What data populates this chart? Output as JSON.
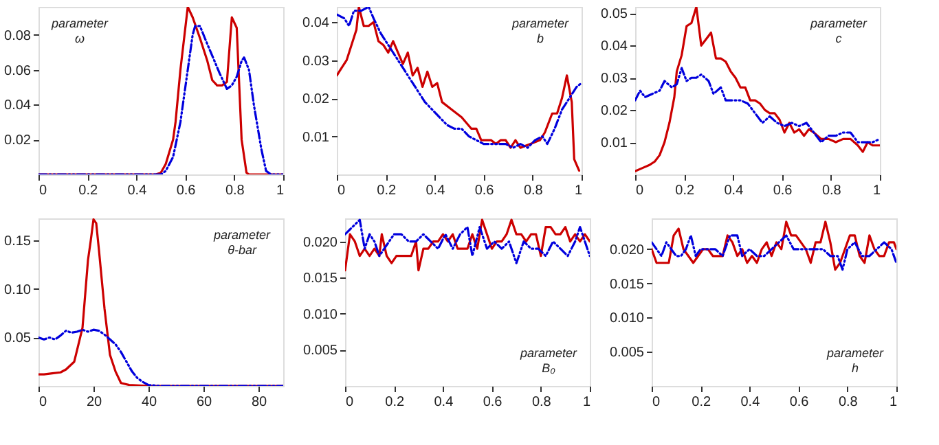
{
  "chart_data": [
    {
      "type": "line",
      "annotations": [
        "parameter\nω"
      ],
      "xlim": [
        0,
        1
      ],
      "xticks": [
        0,
        0.2,
        0.4,
        0.6,
        0.8,
        1
      ],
      "ylim": [
        0,
        0.096
      ],
      "yticks": [
        0.02,
        0.04,
        0.06,
        0.08
      ],
      "grid": false,
      "legend": false,
      "series": [
        {
          "color": "#cc0000",
          "line_style": "solid",
          "x": [
            0,
            0.48,
            0.5,
            0.52,
            0.55,
            0.56,
            0.58,
            0.61,
            0.63,
            0.66,
            0.69,
            0.71,
            0.73,
            0.75,
            0.77,
            0.79,
            0.81,
            0.83,
            0.85,
            0.86,
            1
          ],
          "values": [
            0,
            0,
            0.001,
            0.006,
            0.02,
            0.03,
            0.06,
            0.096,
            0.09,
            0.078,
            0.065,
            0.054,
            0.051,
            0.051,
            0.053,
            0.09,
            0.084,
            0.02,
            0.001,
            0,
            0
          ]
        },
        {
          "color": "#0000dd",
          "line_style": "dashed",
          "x": [
            0,
            0.5,
            0.52,
            0.55,
            0.58,
            0.61,
            0.63,
            0.64,
            0.66,
            0.68,
            0.71,
            0.74,
            0.77,
            0.79,
            0.81,
            0.83,
            0.84,
            0.86,
            0.88,
            0.91,
            0.93,
            0.95,
            1
          ],
          "values": [
            0,
            0,
            0.002,
            0.01,
            0.03,
            0.06,
            0.08,
            0.085,
            0.085,
            0.078,
            0.068,
            0.058,
            0.049,
            0.051,
            0.056,
            0.065,
            0.067,
            0.06,
            0.04,
            0.015,
            0.002,
            0,
            0
          ]
        }
      ]
    },
    {
      "type": "line",
      "annotations": [
        "parameter\nb"
      ],
      "xlim": [
        0,
        1
      ],
      "xticks": [
        0,
        0.2,
        0.4,
        0.6,
        0.8,
        1
      ],
      "ylim": [
        0,
        0.044
      ],
      "yticks": [
        0.01,
        0.02,
        0.03,
        0.04
      ],
      "grid": false,
      "legend": false,
      "series": [
        {
          "color": "#cc0000",
          "line_style": "solid",
          "x": [
            0,
            0.02,
            0.04,
            0.06,
            0.08,
            0.09,
            0.11,
            0.13,
            0.15,
            0.17,
            0.19,
            0.21,
            0.23,
            0.25,
            0.27,
            0.29,
            0.31,
            0.33,
            0.35,
            0.37,
            0.39,
            0.41,
            0.43,
            0.47,
            0.51,
            0.55,
            0.57,
            0.59,
            0.63,
            0.65,
            0.67,
            0.69,
            0.71,
            0.73,
            0.75,
            0.79,
            0.83,
            0.85,
            0.88,
            0.9,
            0.92,
            0.94,
            0.96,
            0.97,
            0.99
          ],
          "values": [
            0.026,
            0.028,
            0.03,
            0.034,
            0.038,
            0.044,
            0.039,
            0.039,
            0.04,
            0.035,
            0.034,
            0.032,
            0.035,
            0.032,
            0.029,
            0.032,
            0.026,
            0.028,
            0.023,
            0.027,
            0.023,
            0.024,
            0.019,
            0.017,
            0.015,
            0.012,
            0.012,
            0.009,
            0.009,
            0.008,
            0.009,
            0.009,
            0.007,
            0.009,
            0.007,
            0.008,
            0.009,
            0.011,
            0.016,
            0.016,
            0.02,
            0.026,
            0.019,
            0.004,
            0.001
          ]
        },
        {
          "color": "#0000dd",
          "line_style": "dashed",
          "x": [
            0,
            0.03,
            0.05,
            0.07,
            0.1,
            0.13,
            0.15,
            0.18,
            0.21,
            0.24,
            0.27,
            0.3,
            0.33,
            0.36,
            0.39,
            0.42,
            0.45,
            0.48,
            0.51,
            0.54,
            0.57,
            0.6,
            0.63,
            0.66,
            0.69,
            0.72,
            0.75,
            0.78,
            0.81,
            0.84,
            0.86,
            0.89,
            0.92,
            0.95,
            0.98,
            1
          ],
          "values": [
            0.042,
            0.041,
            0.039,
            0.043,
            0.043,
            0.044,
            0.041,
            0.037,
            0.034,
            0.031,
            0.028,
            0.025,
            0.022,
            0.019,
            0.017,
            0.015,
            0.013,
            0.012,
            0.012,
            0.01,
            0.009,
            0.008,
            0.008,
            0.008,
            0.008,
            0.007,
            0.008,
            0.007,
            0.009,
            0.01,
            0.008,
            0.012,
            0.017,
            0.02,
            0.023,
            0.024
          ]
        }
      ]
    },
    {
      "type": "line",
      "annotations": [
        "parameter\nc"
      ],
      "xlim": [
        0,
        1
      ],
      "xticks": [
        0,
        0.2,
        0.4,
        0.6,
        0.8,
        1
      ],
      "ylim": [
        0,
        0.052
      ],
      "yticks": [
        0.01,
        0.02,
        0.03,
        0.04,
        0.05
      ],
      "grid": false,
      "legend": false,
      "series": [
        {
          "color": "#cc0000",
          "line_style": "solid",
          "x": [
            0,
            0.03,
            0.06,
            0.08,
            0.1,
            0.12,
            0.14,
            0.16,
            0.17,
            0.19,
            0.21,
            0.23,
            0.25,
            0.27,
            0.29,
            0.31,
            0.33,
            0.35,
            0.37,
            0.39,
            0.41,
            0.43,
            0.45,
            0.47,
            0.49,
            0.51,
            0.53,
            0.55,
            0.57,
            0.59,
            0.61,
            0.63,
            0.65,
            0.67,
            0.69,
            0.71,
            0.73,
            0.76,
            0.79,
            0.82,
            0.85,
            0.88,
            0.91,
            0.93,
            0.95,
            0.97,
            1
          ],
          "values": [
            0.001,
            0.002,
            0.003,
            0.004,
            0.006,
            0.01,
            0.016,
            0.024,
            0.032,
            0.037,
            0.046,
            0.047,
            0.052,
            0.04,
            0.042,
            0.044,
            0.036,
            0.036,
            0.035,
            0.032,
            0.03,
            0.027,
            0.027,
            0.023,
            0.023,
            0.022,
            0.02,
            0.019,
            0.019,
            0.017,
            0.013,
            0.016,
            0.013,
            0.014,
            0.012,
            0.014,
            0.013,
            0.011,
            0.011,
            0.01,
            0.011,
            0.011,
            0.009,
            0.007,
            0.01,
            0.009,
            0.009
          ]
        },
        {
          "color": "#0000dd",
          "line_style": "dashed",
          "x": [
            0,
            0.02,
            0.04,
            0.07,
            0.1,
            0.12,
            0.15,
            0.17,
            0.19,
            0.21,
            0.23,
            0.25,
            0.27,
            0.3,
            0.32,
            0.35,
            0.37,
            0.4,
            0.43,
            0.46,
            0.49,
            0.52,
            0.55,
            0.58,
            0.61,
            0.64,
            0.67,
            0.7,
            0.73,
            0.76,
            0.79,
            0.82,
            0.85,
            0.88,
            0.91,
            0.94,
            0.97,
            1
          ],
          "values": [
            0.023,
            0.026,
            0.024,
            0.025,
            0.026,
            0.029,
            0.027,
            0.028,
            0.033,
            0.029,
            0.03,
            0.03,
            0.031,
            0.029,
            0.025,
            0.027,
            0.023,
            0.023,
            0.023,
            0.022,
            0.019,
            0.016,
            0.018,
            0.016,
            0.015,
            0.016,
            0.015,
            0.016,
            0.013,
            0.01,
            0.012,
            0.012,
            0.013,
            0.013,
            0.01,
            0.01,
            0.01,
            0.011
          ]
        }
      ]
    },
    {
      "type": "line",
      "annotations": [
        "parameter\nθ-bar"
      ],
      "xlim": [
        0,
        89
      ],
      "xticks": [
        0,
        20,
        40,
        60,
        80
      ],
      "ylim": [
        0,
        0.173
      ],
      "yticks": [
        0.05,
        {
          "value": 0.1,
          "label": "0.10"
        },
        0.15
      ],
      "grid": false,
      "legend": false,
      "series": [
        {
          "color": "#cc0000",
          "line_style": "solid",
          "x": [
            0,
            2,
            5,
            8,
            10,
            13,
            16,
            18,
            19,
            20,
            21,
            22,
            24,
            26,
            28,
            30,
            33,
            40,
            89
          ],
          "values": [
            0.012,
            0.012,
            0.013,
            0.014,
            0.017,
            0.025,
            0.06,
            0.13,
            0.15,
            0.172,
            0.168,
            0.14,
            0.08,
            0.032,
            0.015,
            0.003,
            0.001,
            0,
            0
          ]
        },
        {
          "color": "#0000dd",
          "line_style": "dashed",
          "x": [
            0,
            2,
            4,
            6,
            8,
            10,
            12,
            14,
            16,
            18,
            20,
            22,
            24,
            26,
            28,
            30,
            32,
            34,
            36,
            38,
            40,
            44,
            89
          ],
          "values": [
            0.05,
            0.048,
            0.05,
            0.048,
            0.052,
            0.057,
            0.055,
            0.056,
            0.058,
            0.056,
            0.058,
            0.057,
            0.053,
            0.048,
            0.043,
            0.035,
            0.025,
            0.015,
            0.008,
            0.004,
            0.001,
            0,
            0
          ]
        }
      ]
    },
    {
      "type": "line",
      "annotations": [
        "parameter\nB₀"
      ],
      "xlim": [
        0,
        1
      ],
      "xticks": [
        0,
        0.2,
        0.4,
        0.6,
        0.8,
        1
      ],
      "ylim": [
        0,
        0.0232
      ],
      "yticks": [
        {
          "value": 0.005,
          "label": "0.005"
        },
        {
          "value": 0.01,
          "label": "0.010"
        },
        {
          "value": 0.015,
          "label": "0.015"
        },
        {
          "value": 0.02,
          "label": "0.020"
        }
      ],
      "grid": false,
      "legend": false,
      "series": [
        {
          "color": "#cc0000",
          "line_style": "solid",
          "x": [
            0,
            0.02,
            0.04,
            0.06,
            0.08,
            0.1,
            0.12,
            0.14,
            0.15,
            0.17,
            0.19,
            0.21,
            0.23,
            0.25,
            0.27,
            0.29,
            0.3,
            0.32,
            0.34,
            0.36,
            0.38,
            0.4,
            0.42,
            0.44,
            0.46,
            0.48,
            0.5,
            0.52,
            0.54,
            0.56,
            0.58,
            0.6,
            0.62,
            0.64,
            0.66,
            0.68,
            0.7,
            0.72,
            0.74,
            0.76,
            0.78,
            0.8,
            0.82,
            0.84,
            0.86,
            0.88,
            0.9,
            0.92,
            0.94,
            0.96,
            0.98,
            1
          ],
          "values": [
            0.016,
            0.021,
            0.02,
            0.018,
            0.019,
            0.018,
            0.019,
            0.018,
            0.021,
            0.018,
            0.017,
            0.018,
            0.018,
            0.018,
            0.018,
            0.02,
            0.016,
            0.019,
            0.019,
            0.02,
            0.02,
            0.021,
            0.02,
            0.021,
            0.019,
            0.019,
            0.019,
            0.021,
            0.019,
            0.023,
            0.021,
            0.019,
            0.02,
            0.02,
            0.021,
            0.023,
            0.021,
            0.021,
            0.02,
            0.021,
            0.021,
            0.018,
            0.022,
            0.022,
            0.021,
            0.021,
            0.022,
            0.02,
            0.021,
            0.02,
            0.021,
            0.02
          ]
        },
        {
          "color": "#0000dd",
          "line_style": "dashed",
          "x": [
            0,
            0.03,
            0.06,
            0.08,
            0.1,
            0.12,
            0.14,
            0.16,
            0.18,
            0.2,
            0.23,
            0.26,
            0.29,
            0.32,
            0.35,
            0.38,
            0.41,
            0.44,
            0.47,
            0.5,
            0.52,
            0.55,
            0.58,
            0.61,
            0.64,
            0.67,
            0.7,
            0.73,
            0.76,
            0.79,
            0.82,
            0.85,
            0.88,
            0.91,
            0.94,
            0.96,
            1
          ],
          "values": [
            0.021,
            0.022,
            0.023,
            0.019,
            0.021,
            0.02,
            0.018,
            0.019,
            0.02,
            0.021,
            0.021,
            0.02,
            0.02,
            0.021,
            0.02,
            0.019,
            0.021,
            0.019,
            0.021,
            0.022,
            0.018,
            0.022,
            0.019,
            0.02,
            0.019,
            0.02,
            0.017,
            0.02,
            0.019,
            0.019,
            0.018,
            0.02,
            0.019,
            0.018,
            0.02,
            0.022,
            0.018
          ]
        }
      ]
    },
    {
      "type": "line",
      "annotations": [
        "parameter\nh"
      ],
      "xlim": [
        0,
        1
      ],
      "xticks": [
        0,
        0.2,
        0.4,
        0.6,
        0.8,
        1
      ],
      "ylim": [
        0,
        0.0245
      ],
      "yticks": [
        {
          "value": 0.005,
          "label": "0.005"
        },
        {
          "value": 0.01,
          "label": "0.010"
        },
        {
          "value": 0.015,
          "label": "0.015"
        },
        {
          "value": 0.02,
          "label": "0.020"
        }
      ],
      "grid": false,
      "legend": false,
      "series": [
        {
          "color": "#cc0000",
          "line_style": "solid",
          "x": [
            0,
            0.02,
            0.04,
            0.07,
            0.09,
            0.11,
            0.13,
            0.15,
            0.17,
            0.19,
            0.21,
            0.23,
            0.25,
            0.27,
            0.29,
            0.31,
            0.33,
            0.35,
            0.37,
            0.39,
            0.41,
            0.43,
            0.45,
            0.47,
            0.49,
            0.51,
            0.53,
            0.55,
            0.57,
            0.59,
            0.61,
            0.63,
            0.65,
            0.67,
            0.69,
            0.71,
            0.73,
            0.75,
            0.77,
            0.79,
            0.81,
            0.83,
            0.85,
            0.87,
            0.89,
            0.91,
            0.93,
            0.95,
            0.97,
            0.99,
            1
          ],
          "values": [
            0.02,
            0.018,
            0.018,
            0.018,
            0.022,
            0.023,
            0.02,
            0.019,
            0.018,
            0.019,
            0.02,
            0.02,
            0.019,
            0.019,
            0.019,
            0.022,
            0.021,
            0.019,
            0.02,
            0.018,
            0.019,
            0.018,
            0.02,
            0.021,
            0.019,
            0.021,
            0.02,
            0.024,
            0.022,
            0.022,
            0.021,
            0.02,
            0.018,
            0.021,
            0.021,
            0.024,
            0.021,
            0.017,
            0.018,
            0.02,
            0.022,
            0.022,
            0.019,
            0.018,
            0.022,
            0.02,
            0.019,
            0.019,
            0.021,
            0.021,
            0.02
          ]
        },
        {
          "color": "#0000dd",
          "line_style": "dashed",
          "x": [
            0,
            0.02,
            0.04,
            0.06,
            0.08,
            0.1,
            0.12,
            0.14,
            0.16,
            0.18,
            0.2,
            0.23,
            0.26,
            0.29,
            0.32,
            0.35,
            0.37,
            0.4,
            0.43,
            0.46,
            0.49,
            0.52,
            0.55,
            0.58,
            0.61,
            0.64,
            0.67,
            0.7,
            0.73,
            0.76,
            0.78,
            0.8,
            0.83,
            0.86,
            0.89,
            0.92,
            0.95,
            0.98,
            1
          ],
          "values": [
            0.021,
            0.02,
            0.019,
            0.021,
            0.02,
            0.019,
            0.019,
            0.02,
            0.022,
            0.019,
            0.02,
            0.02,
            0.02,
            0.019,
            0.022,
            0.022,
            0.019,
            0.02,
            0.019,
            0.019,
            0.02,
            0.021,
            0.022,
            0.02,
            0.02,
            0.02,
            0.02,
            0.02,
            0.019,
            0.019,
            0.017,
            0.02,
            0.021,
            0.019,
            0.019,
            0.02,
            0.021,
            0.02,
            0.018
          ]
        }
      ]
    }
  ]
}
